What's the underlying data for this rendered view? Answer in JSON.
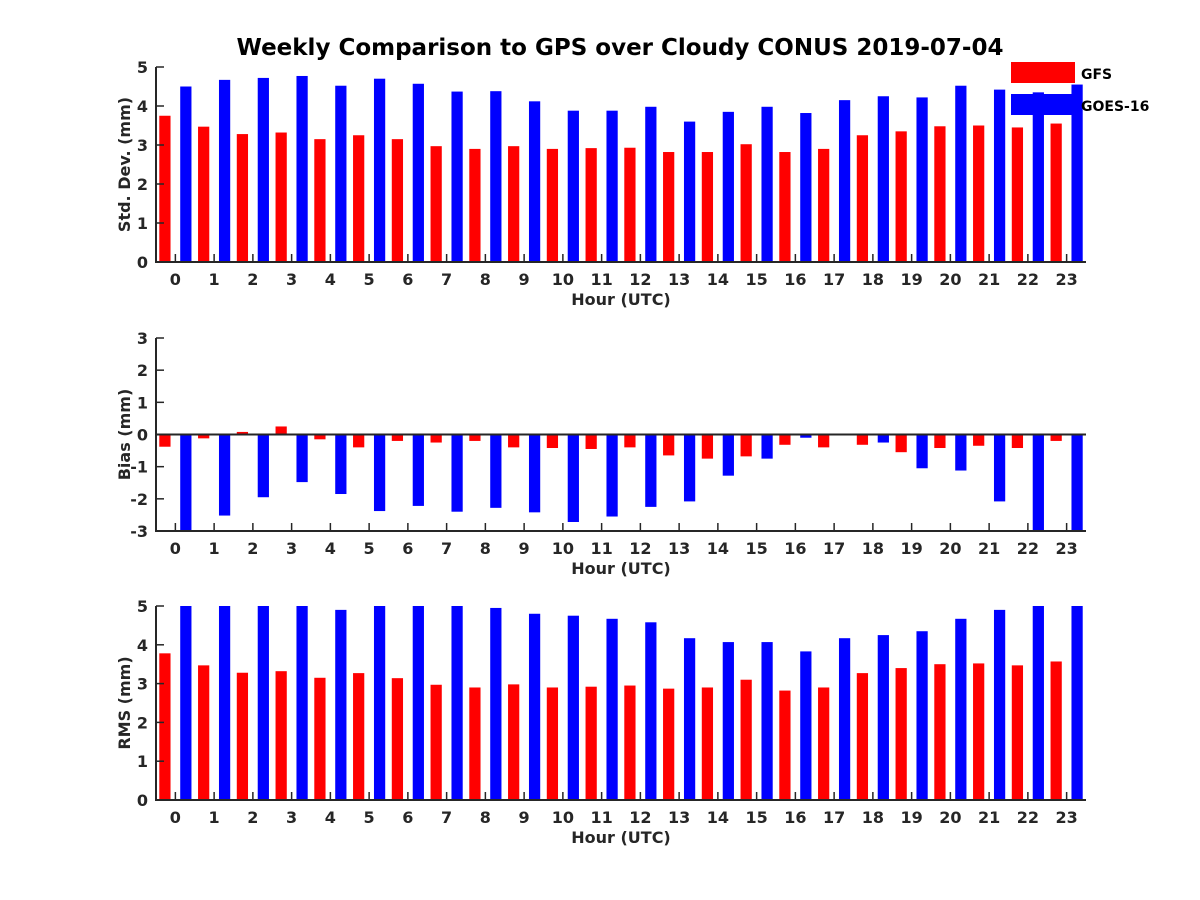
{
  "chart_data": {
    "type": "bar",
    "title": "Weekly Comparison to GPS over Cloudy CONUS 2019-07-04",
    "legend": {
      "placement": "top-right",
      "entries": [
        {
          "name": "GFS",
          "color": "#ff0000"
        },
        {
          "name": "GOES-16",
          "color": "#0000ff"
        }
      ]
    },
    "categories": [
      "0",
      "1",
      "2",
      "3",
      "4",
      "5",
      "6",
      "7",
      "8",
      "9",
      "10",
      "11",
      "12",
      "13",
      "14",
      "15",
      "16",
      "17",
      "18",
      "19",
      "20",
      "21",
      "22",
      "23"
    ],
    "panels": [
      {
        "id": "std",
        "ylabel": "Std. Dev. (mm)",
        "xlabel": "Hour (UTC)",
        "ylim": [
          0,
          5
        ],
        "yticks": [
          "0",
          "1",
          "2",
          "3",
          "4",
          "5"
        ],
        "series": [
          {
            "name": "GFS",
            "color": "#ff0000",
            "values": [
              3.75,
              3.47,
              3.28,
              3.32,
              3.15,
              3.25,
              3.15,
              2.97,
              2.9,
              2.97,
              2.9,
              2.92,
              2.93,
              2.82,
              2.82,
              3.02,
              2.82,
              2.9,
              3.25,
              3.35,
              3.48,
              3.5,
              3.45,
              3.55
            ]
          },
          {
            "name": "GOES-16",
            "color": "#0000ff",
            "values": [
              4.5,
              4.67,
              4.72,
              4.77,
              4.52,
              4.7,
              4.57,
              4.37,
              4.38,
              4.12,
              3.88,
              3.88,
              3.98,
              3.6,
              3.85,
              3.98,
              3.82,
              4.15,
              4.25,
              4.22,
              4.52,
              4.42,
              4.35,
              4.55
            ]
          }
        ]
      },
      {
        "id": "bias",
        "ylabel": "Bias (mm)",
        "xlabel": "Hour (UTC)",
        "ylim": [
          -3,
          3
        ],
        "yticks": [
          "-3",
          "-2",
          "-1",
          "0",
          "1",
          "2",
          "3"
        ],
        "zero_line": true,
        "series": [
          {
            "name": "GFS",
            "color": "#ff0000",
            "values": [
              -0.38,
              -0.12,
              0.08,
              0.25,
              -0.15,
              -0.4,
              -0.2,
              -0.25,
              -0.2,
              -0.4,
              -0.42,
              -0.45,
              -0.4,
              -0.65,
              -0.75,
              -0.68,
              -0.32,
              -0.4,
              -0.32,
              -0.55,
              -0.42,
              -0.35,
              -0.42,
              -0.2
            ]
          },
          {
            "name": "GOES-16",
            "color": "#0000ff",
            "values": [
              -3.1,
              -2.52,
              -1.95,
              -1.48,
              -1.85,
              -2.38,
              -2.22,
              -2.4,
              -2.28,
              -2.42,
              -2.72,
              -2.55,
              -2.25,
              -2.08,
              -1.28,
              -0.75,
              -0.1,
              -0.03,
              -0.25,
              -1.05,
              -1.12,
              -2.08,
              -3.1,
              -3.1
            ]
          }
        ]
      },
      {
        "id": "rms",
        "ylabel": "RMS (mm)",
        "xlabel": "Hour (UTC)",
        "ylim": [
          0,
          5
        ],
        "yticks": [
          "0",
          "1",
          "2",
          "3",
          "4",
          "5"
        ],
        "series": [
          {
            "name": "GFS",
            "color": "#ff0000",
            "values": [
              3.78,
              3.47,
              3.28,
              3.32,
              3.15,
              3.27,
              3.14,
              2.97,
              2.9,
              2.98,
              2.9,
              2.92,
              2.95,
              2.87,
              2.9,
              3.1,
              2.82,
              2.9,
              3.27,
              3.4,
              3.5,
              3.52,
              3.47,
              3.57
            ]
          },
          {
            "name": "GOES-16",
            "color": "#0000ff",
            "values": [
              5.1,
              5.1,
              5.1,
              5.1,
              4.9,
              5.1,
              5.1,
              5.1,
              4.95,
              4.8,
              4.75,
              4.67,
              4.58,
              4.17,
              4.07,
              4.07,
              3.83,
              4.17,
              4.25,
              4.35,
              4.67,
              4.9,
              5.1,
              5.1
            ]
          }
        ]
      }
    ]
  }
}
